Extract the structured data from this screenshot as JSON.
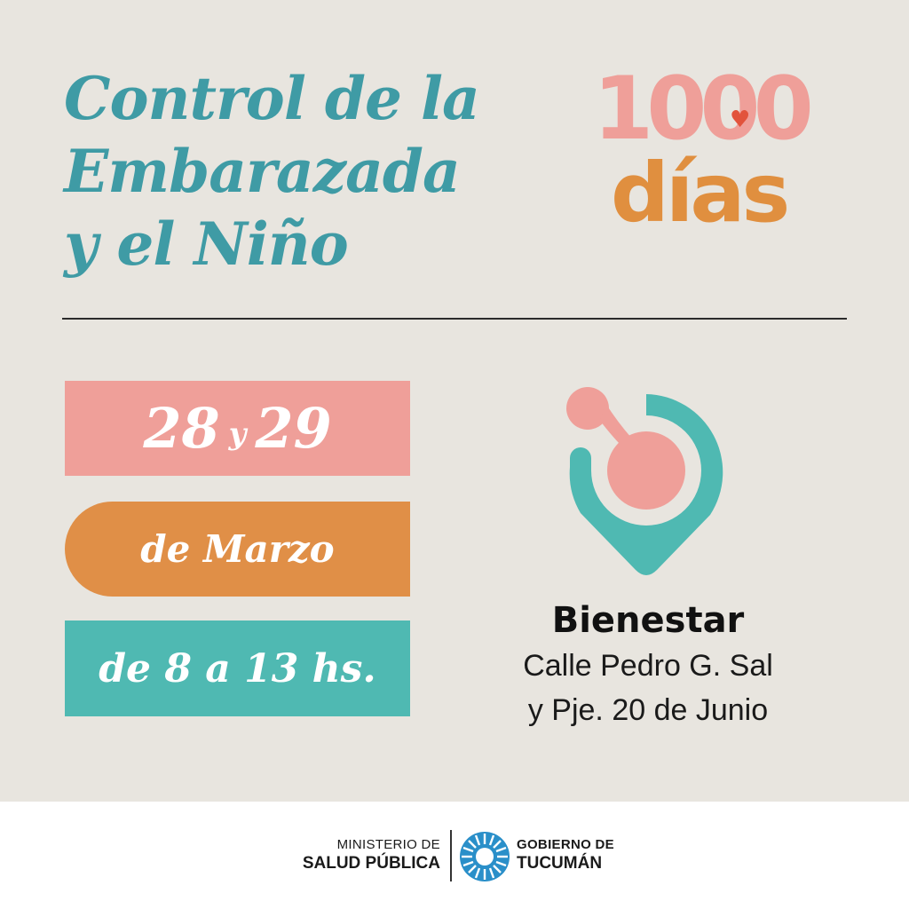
{
  "title": {
    "line1": "Control de la",
    "line2": "Embarazada",
    "line3": "y el Niño"
  },
  "logo": {
    "line1": "1000",
    "line2": "días",
    "heart": "♥"
  },
  "event": {
    "day1": "28",
    "joiner": "y",
    "day2": "29",
    "month": "de Marzo",
    "hours": "de 8 a 13 hs."
  },
  "venue": {
    "name": "Bienestar",
    "address_line1": "Calle Pedro G. Sal",
    "address_line2": "y Pje. 20 de Junio"
  },
  "footer": {
    "ministry_line1": "MINISTERIO DE",
    "ministry_line2": "SALUD PÚBLICA",
    "government_line1": "GOBIERNO DE",
    "government_line2": "TUCUMÁN"
  },
  "colors": {
    "background": "#e8e5df",
    "title": "#3f9ba5",
    "pink": "#ef9f99",
    "orange": "#e08f47",
    "teal": "#4fb9b2",
    "heart": "#e2533c"
  },
  "icons": {
    "logo_heart": "heart-icon",
    "location": "location-pin-icon",
    "government_emblem": "sun-emblem-icon"
  }
}
